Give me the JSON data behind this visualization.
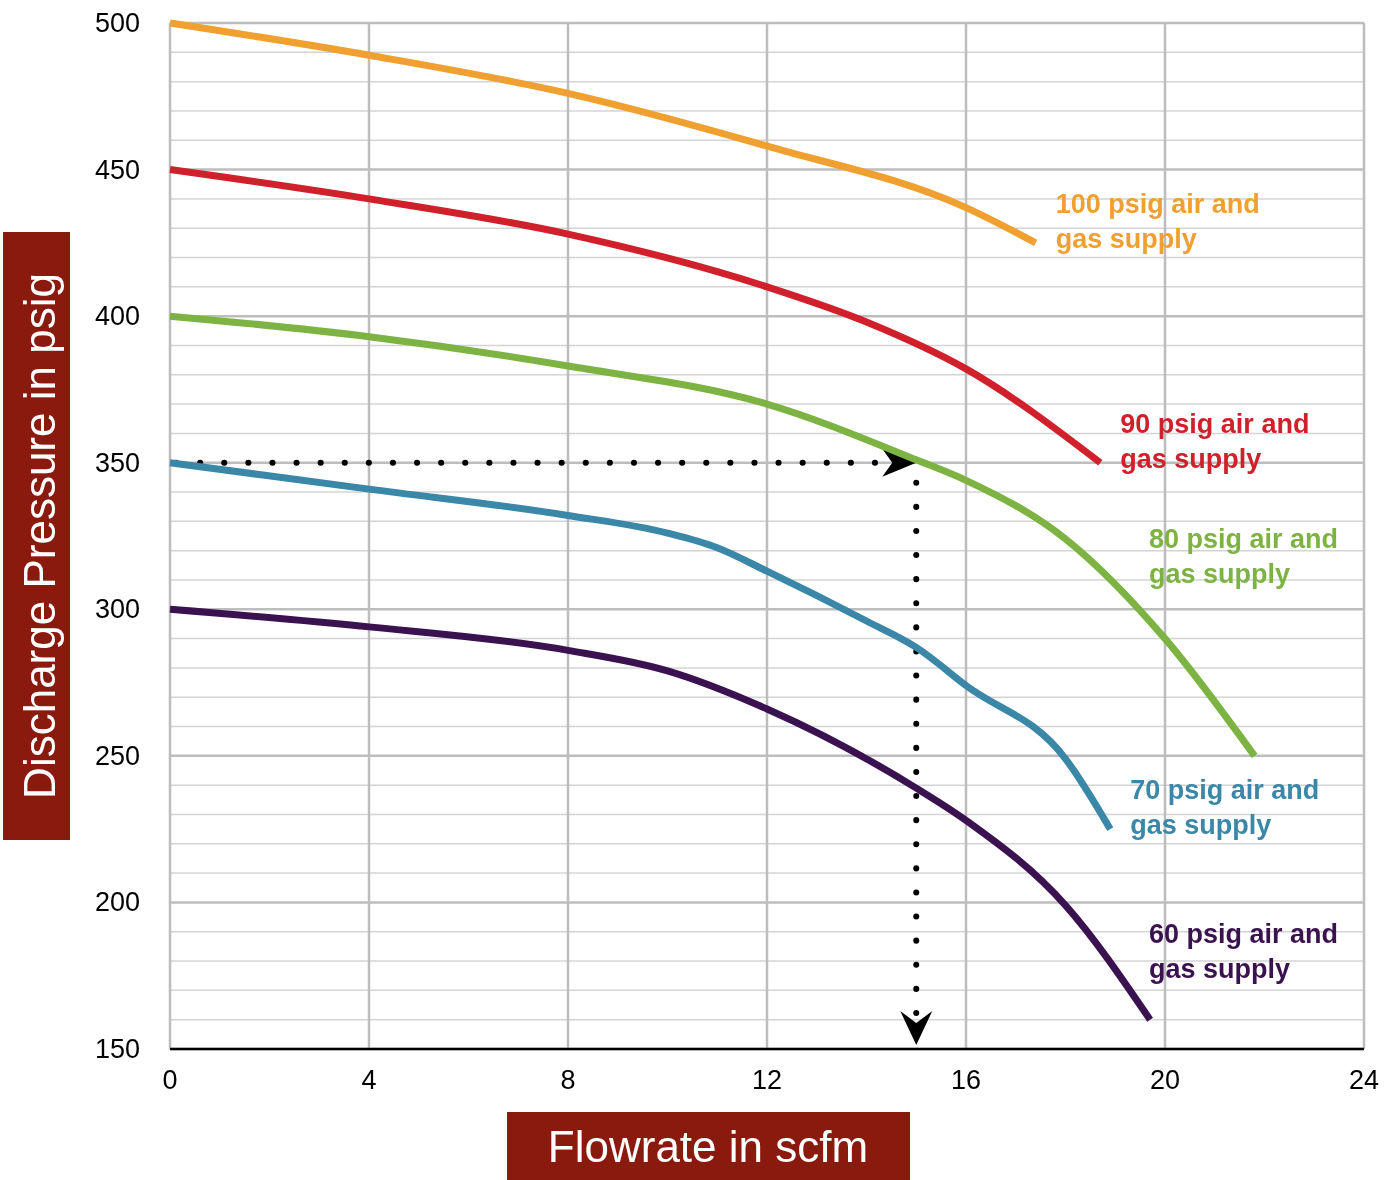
{
  "chart_data": {
    "type": "line",
    "xlabel": "Flowrate in scfm",
    "ylabel": "Discharge Pressure in psig",
    "xlim": [
      0,
      24
    ],
    "xticks": [
      0,
      4,
      8,
      12,
      16,
      20,
      24
    ],
    "ylim": [
      150,
      500
    ],
    "yticks": [
      150,
      {
        "value": 160,
        "label": null
      },
      {
        "value": 170,
        "label": null
      },
      {
        "value": 180,
        "label": null
      },
      {
        "value": 190,
        "label": null
      },
      200,
      {
        "value": 210,
        "label": null
      },
      {
        "value": 220,
        "label": null
      },
      {
        "value": 230,
        "label": null
      },
      {
        "value": 240,
        "label": null
      },
      250,
      {
        "value": 260,
        "label": null
      },
      {
        "value": 270,
        "label": null
      },
      {
        "value": 280,
        "label": null
      },
      {
        "value": 290,
        "label": null
      },
      300,
      {
        "value": 310,
        "label": null
      },
      {
        "value": 320,
        "label": null
      },
      {
        "value": 330,
        "label": null
      },
      {
        "value": 340,
        "label": null
      },
      350,
      {
        "value": 360,
        "label": null
      },
      {
        "value": 370,
        "label": null
      },
      {
        "value": 380,
        "label": null
      },
      {
        "value": 390,
        "label": null
      },
      400,
      {
        "value": 410,
        "label": null
      },
      {
        "value": 420,
        "label": null
      },
      {
        "value": 430,
        "label": null
      },
      {
        "value": 440,
        "label": null
      },
      450,
      {
        "value": 460,
        "label": null
      },
      {
        "value": 470,
        "label": null
      },
      {
        "value": 480,
        "label": null
      },
      {
        "value": 490,
        "label": null
      },
      500
    ],
    "grid": true,
    "marker": "none",
    "line_style": "solid",
    "series": [
      {
        "name": "100 psig air and gas supply",
        "color": "#f0a030",
        "x": [
          0,
          4,
          8,
          12,
          16,
          17.4
        ],
        "values": [
          500,
          489,
          476,
          458,
          437,
          425
        ]
      },
      {
        "name": "90 psig air and gas supply",
        "color": "#d0202c",
        "x": [
          0,
          4,
          8,
          12,
          14,
          16,
          18.7
        ],
        "values": [
          450,
          440,
          428,
          410,
          398,
          382,
          350
        ]
      },
      {
        "name": "80 psig air and gas supply",
        "color": "#7cb342",
        "x": [
          0,
          4,
          8,
          12,
          15,
          16,
          18,
          20,
          21.8
        ],
        "values": [
          400,
          393,
          383,
          370,
          351,
          344,
          324,
          290,
          250
        ]
      },
      {
        "name": "70 psig air and gas supply",
        "color": "#3a87a8",
        "x": [
          0,
          4,
          8,
          10,
          11,
          12,
          14,
          15,
          16,
          18,
          18.9
        ],
        "values": [
          350,
          341,
          332,
          326,
          321,
          313,
          296,
          287,
          274,
          249,
          225
        ]
      },
      {
        "name": "60 psig air and gas supply",
        "color": "#3a1250",
        "x": [
          0,
          4,
          8,
          10,
          12,
          15,
          16,
          18,
          19.7
        ],
        "values": [
          300,
          294,
          286,
          279,
          266,
          239,
          228,
          199,
          160
        ]
      }
    ],
    "ref_lines": [
      {
        "axis": "y",
        "value": 350,
        "line_style": "dotted",
        "color": "#000000"
      },
      {
        "axis": "x",
        "value": 15,
        "line_style": "dotted",
        "color": "#000000"
      }
    ]
  }
}
